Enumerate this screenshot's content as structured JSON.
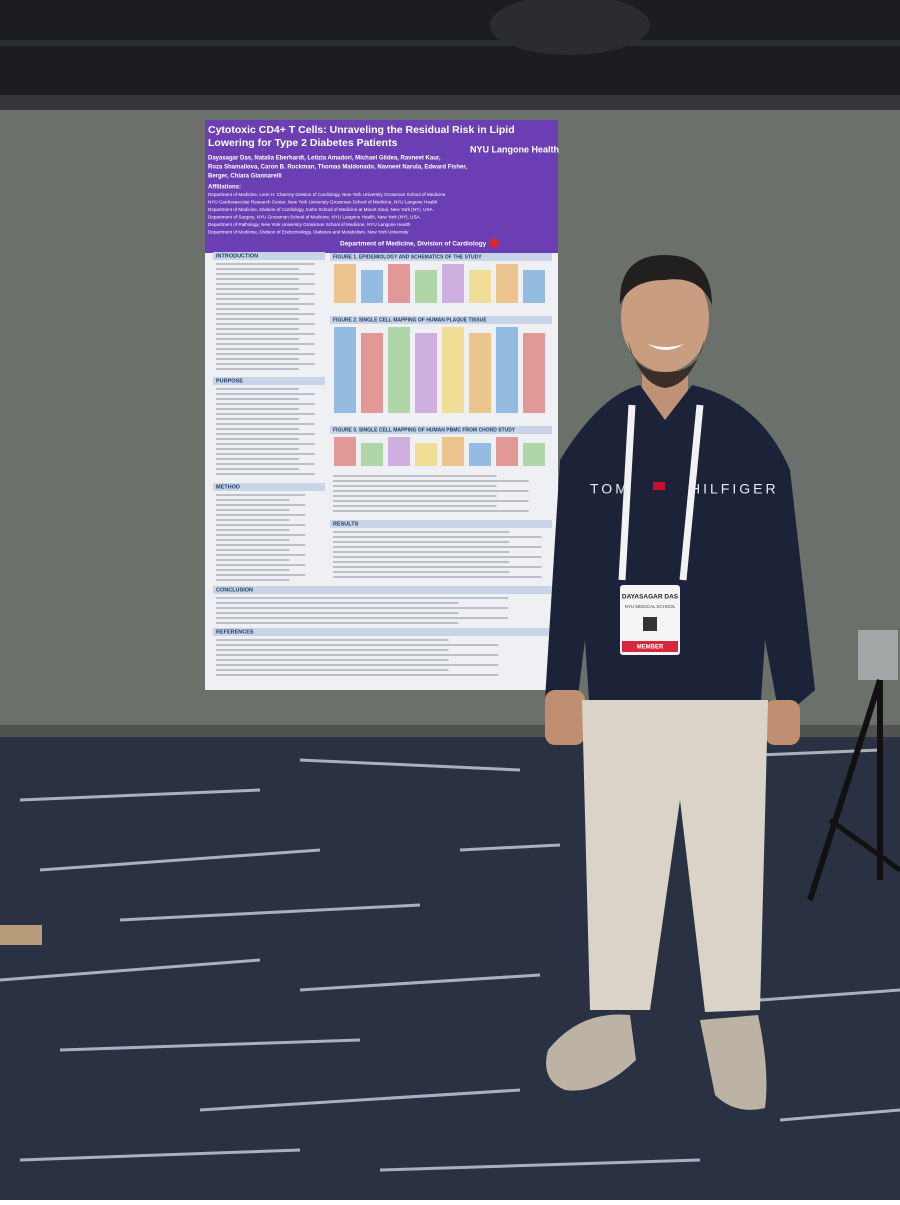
{
  "poster": {
    "title_lines": [
      "Cytotoxic CD4+ T Cells: Unraveling the Residual Risk in Lipid",
      "Lowering for Type 2 Diabetes Patients"
    ],
    "institution": "NYU Langone Health",
    "author_lines": [
      "Dayasagar Das, Natalia Eberhardt, Letizia Amadori, Michael Gildea, Ravneet Kaur,",
      "Roza Shamailova, Caron B. Rockman, Thomas Maldonado, Navneet Narula, Edward Fisher,",
      "Berger, Chiara Giannarelli"
    ],
    "affiliations_heading": "Affiliations:",
    "affiliation_lines": [
      "Department of Medicine, Leon H. Charney Division of Cardiology, New York University Grossman School of Medicine",
      "NYU Cardiovascular Research Center, New York University Grossman School of Medicine, NYU Langone Health",
      "Department of Medicine, Division of Cardiology, Icahn School of Medicine at Mount Sinai, New York (NY), USA.",
      "Department of Surgery, NYU Grossman School of Medicine, NYU Langone Health, New York (NY), USA.",
      "Department of Pathology, New York University Grossman School of Medicine, NYU Langone Health",
      "Department of Medicine, Division of Endocrinology, Diabetes and Metabolism, New York University"
    ],
    "department": "Department of Medicine, Division of Cardiology",
    "left_sections": [
      "INTRODUCTION",
      "PURPOSE",
      "METHOD"
    ],
    "figures": [
      "FIGURE 1. EPIDEMIOLOGY AND SCHEMATICS OF THE STUDY",
      "FIGURE 2. SINGLE CELL MAPPING OF HUMAN PLAQUE TISSUE",
      "FIGURE 3. SINGLE CELL MAPPING OF HUMAN PBMC FROM CHORD STUDY"
    ],
    "results_heading": "RESULTS",
    "conclusion_heading": "CONCLUSION",
    "references_heading": "REFERENCES"
  },
  "sweatshirt": {
    "brand_left": "TOM",
    "brand_right": "HILFIGER"
  },
  "badge": {
    "name": "DAYASAGAR DAS",
    "school": "NYU MEDICAL SCHOOL",
    "tag": "MEMBER"
  }
}
